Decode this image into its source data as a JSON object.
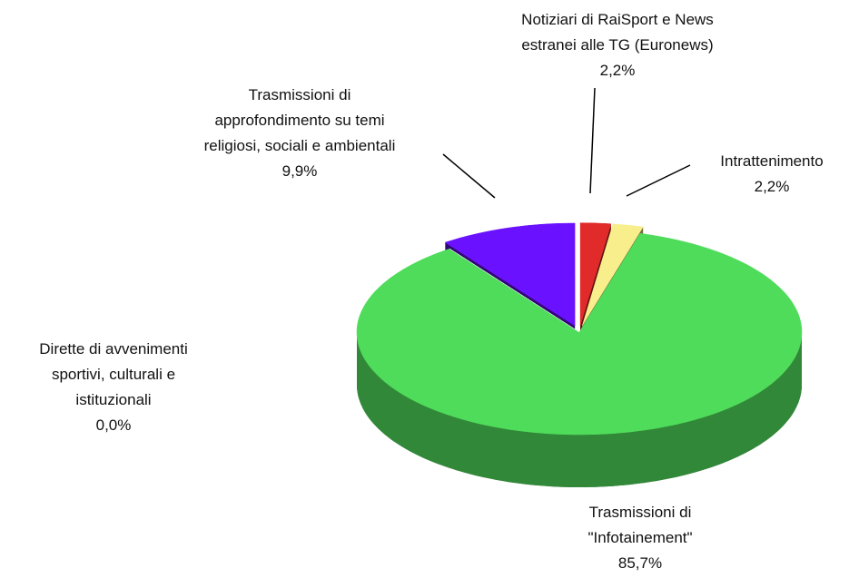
{
  "chart_data": {
    "type": "pie3d",
    "categories": [
      "Notiziari di RaiSport e News\nestranei alle TG (Euronews)",
      "Intrattenimento",
      "Trasmissioni di\n\"Infotainement\"",
      "Dirette di avvenimenti\nsportivi, culturali e\nistituzionali",
      "Trasmissioni di\napprofondimento  su temi\nreligiosi, sociali e ambientali"
    ],
    "values": [
      2.2,
      2.2,
      85.7,
      0.0,
      9.9
    ],
    "value_labels": [
      "2,2%",
      "2,2%",
      "85,7%",
      "0,0%",
      "9,9%"
    ],
    "colors": [
      "#e12a2a",
      "#f8ef8c",
      "#4fdc5b",
      "#ffffff",
      "#6a12ff"
    ],
    "exploded": [
      true,
      true,
      false,
      false,
      true
    ]
  }
}
